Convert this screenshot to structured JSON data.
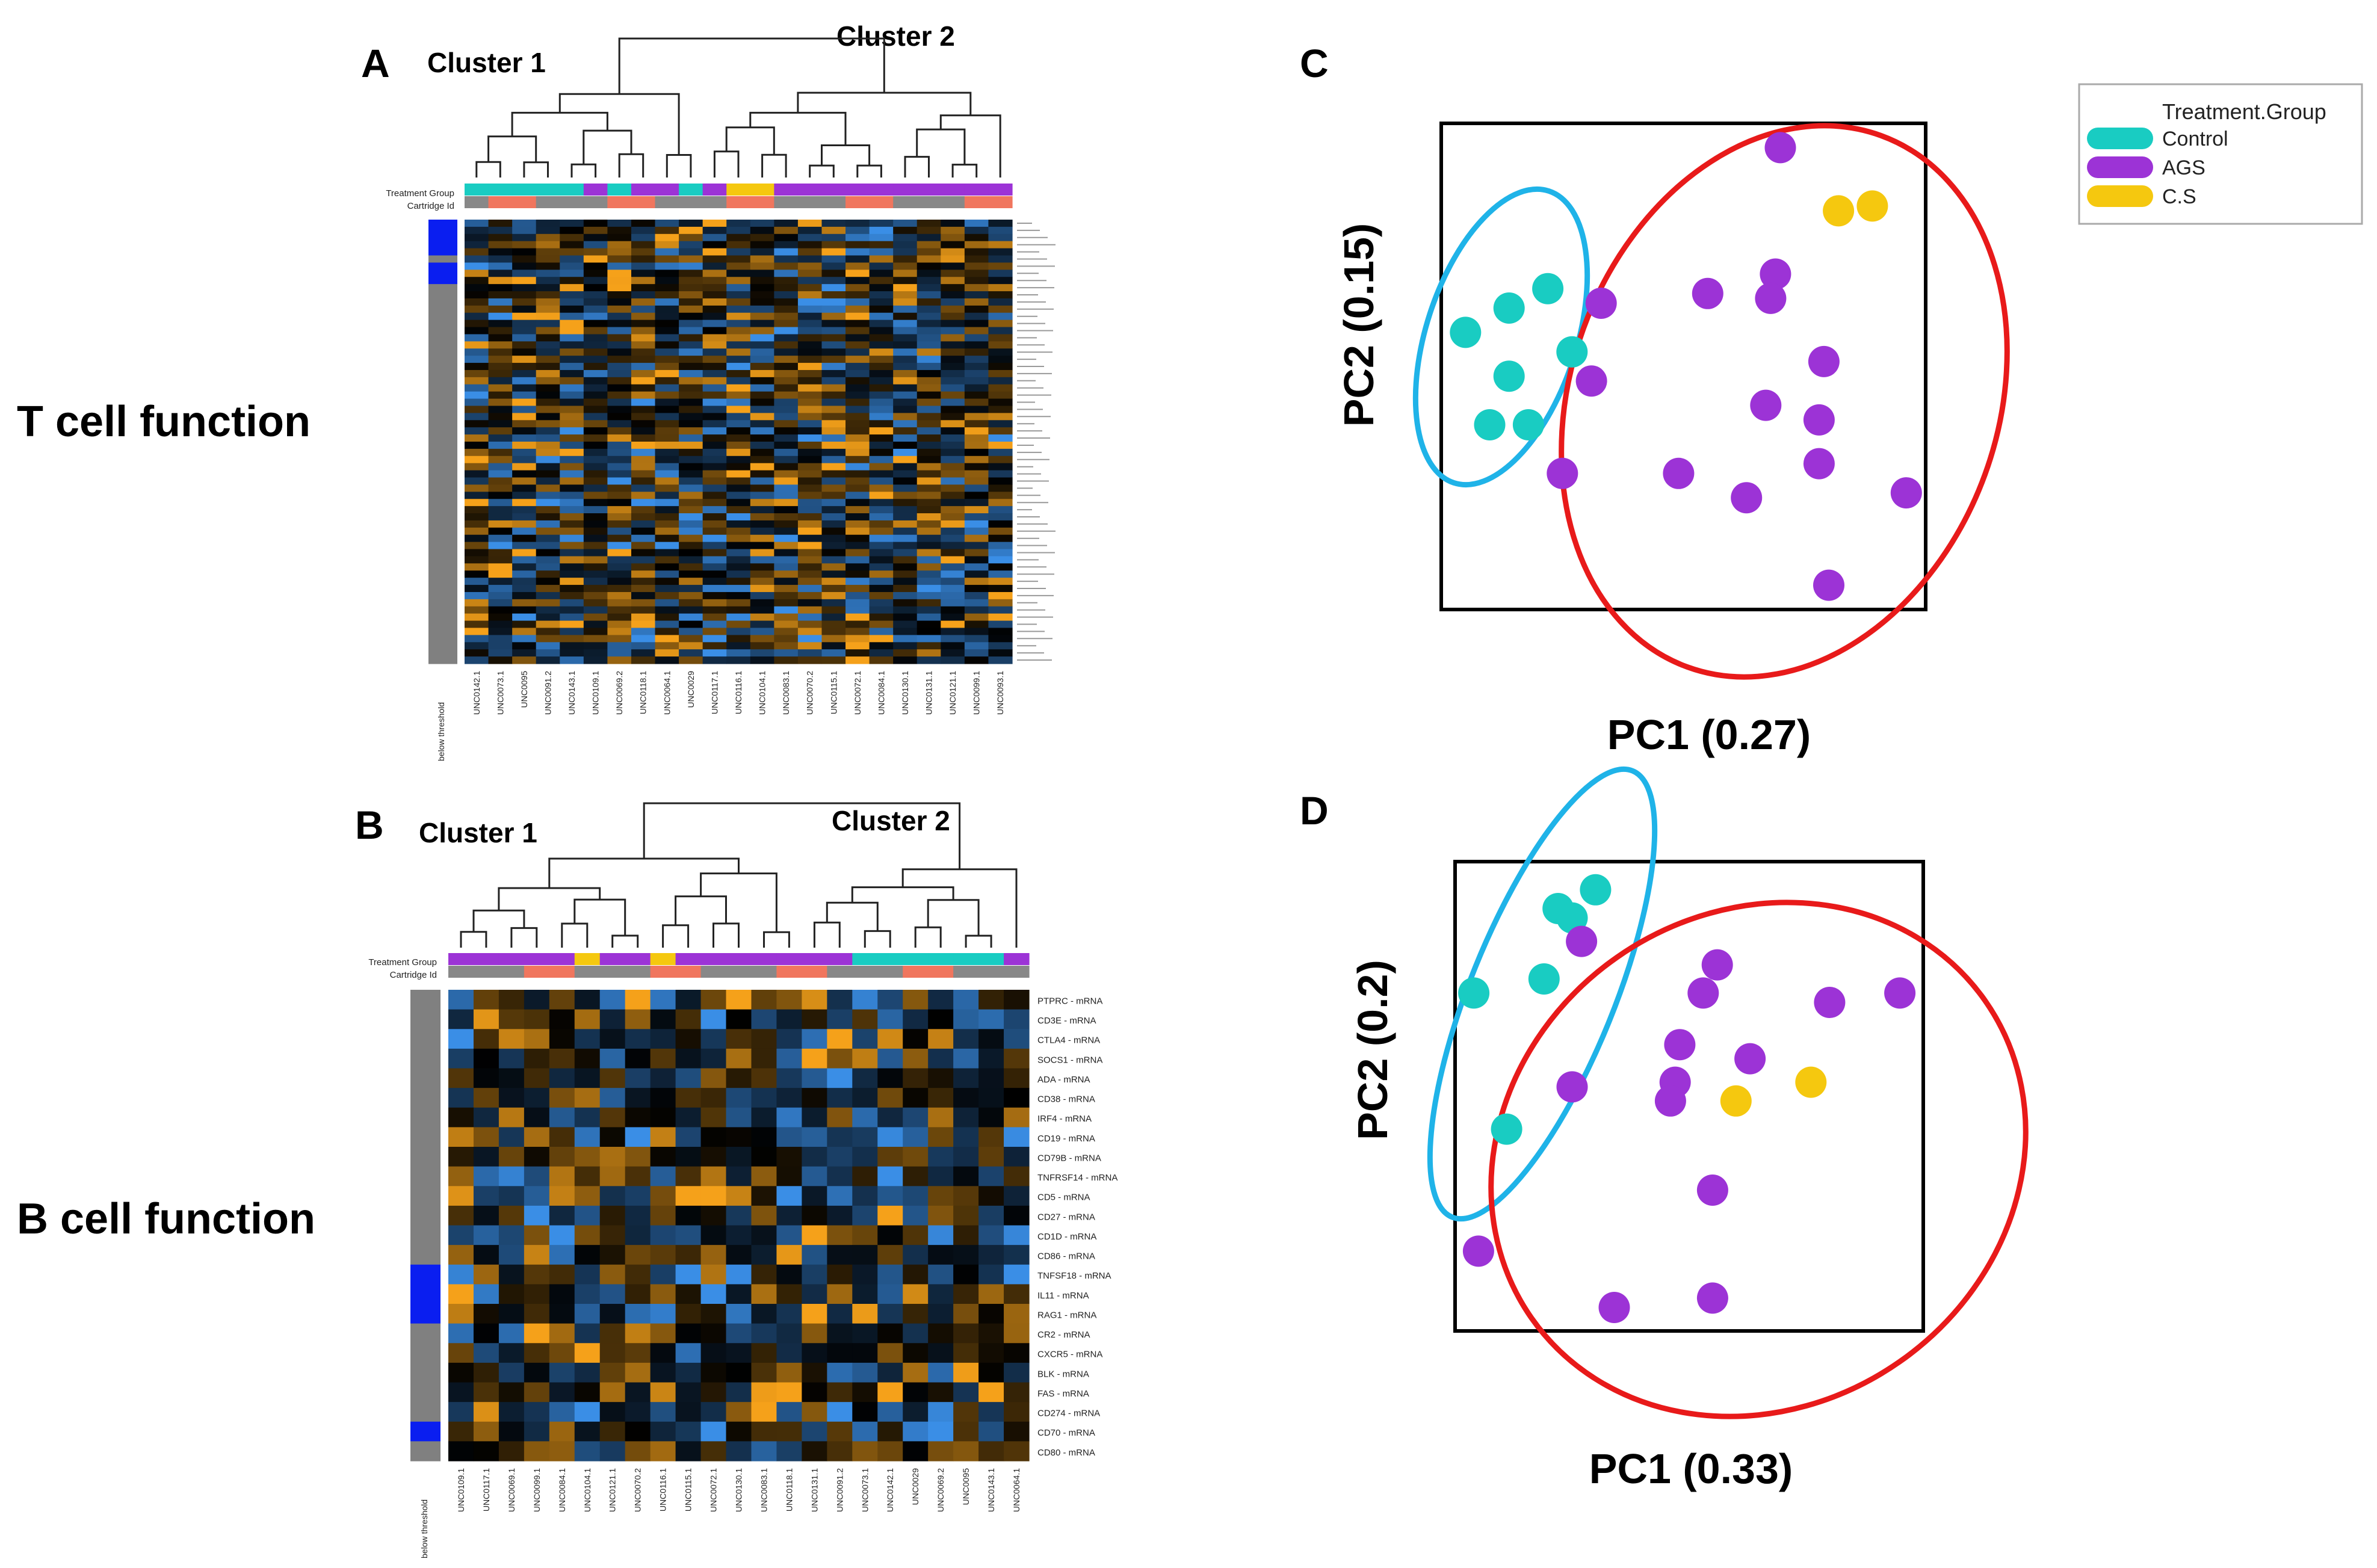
{
  "chart_data": [
    {
      "panel": "A",
      "type": "heatmap",
      "row_label": "T cell function",
      "cluster_labels": [
        "Cluster 1",
        "Cluster 2"
      ],
      "annotation_labels": [
        "Treatment Group",
        "Cartridge Id"
      ],
      "threshold_label": "below threshold",
      "samples": [
        "UNC0142.1",
        "UNC0073.1",
        "UNC0095",
        "UNC0091.2",
        "UNC0143.1",
        "UNC0109.1",
        "UNC0069.2",
        "UNC0118.1",
        "UNC0064.1",
        "UNC0029",
        "UNC0117.1",
        "UNC0116.1",
        "UNC0104.1",
        "UNC0083.1",
        "UNC0070.2",
        "UNC0115.1",
        "UNC0072.1",
        "UNC0084.1",
        "UNC0130.1",
        "UNC0131.1",
        "UNC0121.1",
        "UNC0099.1",
        "UNC0093.1"
      ],
      "treatment_group": [
        "Control",
        "Control",
        "Control",
        "Control",
        "Control",
        "AGS",
        "Control",
        "AGS",
        "AGS",
        "Control",
        "AGS",
        "C.S",
        "C.S",
        "AGS",
        "AGS",
        "AGS",
        "AGS",
        "AGS",
        "AGS",
        "AGS",
        "AGS",
        "AGS",
        "AGS"
      ],
      "gene_count": 62,
      "color_scale": {
        "low": "#3a8ee6",
        "mid": "#000000",
        "high": "#f5a11a"
      }
    },
    {
      "panel": "B",
      "type": "heatmap",
      "row_label": "B cell function",
      "cluster_labels": [
        "Cluster 1",
        "Cluster 2"
      ],
      "annotation_labels": [
        "Treatment Group",
        "Cartridge Id"
      ],
      "threshold_label": "below threshold",
      "samples": [
        "UNC0109.1",
        "UNC0117.1",
        "UNC0069.1",
        "UNC0099.1",
        "UNC0084.1",
        "UNC0104.1",
        "UNC0121.1",
        "UNC0070.2",
        "UNC0116.1",
        "UNC0115.1",
        "UNC0072.1",
        "UNC0130.1",
        "UNC0083.1",
        "UNC0118.1",
        "UNC0131.1",
        "UNC0091.2",
        "UNC0073.1",
        "UNC0142.1",
        "UNC0029",
        "UNC0069.2",
        "UNC0095",
        "UNC0143.1",
        "UNC0064.1"
      ],
      "treatment_group": [
        "AGS",
        "AGS",
        "AGS",
        "AGS",
        "AGS",
        "C.S",
        "AGS",
        "AGS",
        "C.S",
        "AGS",
        "AGS",
        "AGS",
        "AGS",
        "AGS",
        "AGS",
        "AGS",
        "Control",
        "Control",
        "Control",
        "Control",
        "Control",
        "Control",
        "AGS"
      ],
      "genes": [
        "PTPRC - mRNA",
        "CD3E - mRNA",
        "CTLA4 - mRNA",
        "SOCS1 - mRNA",
        "ADA - mRNA",
        "CD38 - mRNA",
        "IRF4 - mRNA",
        "CD19 - mRNA",
        "CD79B - mRNA",
        "TNFRSF14 - mRNA",
        "CD5 - mRNA",
        "CD27 - mRNA",
        "CD1D - mRNA",
        "CD86 - mRNA",
        "TNFSF18 - mRNA",
        "IL11 - mRNA",
        "RAG1 - mRNA",
        "CR2 - mRNA",
        "CXCR5 - mRNA",
        "BLK - mRNA",
        "FAS - mRNA",
        "CD274 - mRNA",
        "CD70 - mRNA",
        "CD80 - mRNA"
      ],
      "color_scale": {
        "low": "#3a8ee6",
        "mid": "#000000",
        "high": "#f5a11a"
      }
    },
    {
      "panel": "C",
      "type": "scatter",
      "xlabel": "PC1 (0.27)",
      "ylabel": "PC2 (0.15)",
      "xlim": [
        0,
        1
      ],
      "ylim": [
        0,
        1
      ],
      "legend": {
        "title": "Treatment.Group",
        "items": [
          "Control",
          "AGS",
          "C.S"
        ],
        "placement": "top-right"
      },
      "colors": {
        "Control": "#19ccc2",
        "AGS": "#9c33d6",
        "C.S": "#f5c80f"
      },
      "series": [
        {
          "name": "Control",
          "points": [
            [
              0.05,
              0.57
            ],
            [
              0.14,
              0.62
            ],
            [
              0.22,
              0.66
            ],
            [
              0.27,
              0.53
            ],
            [
              0.14,
              0.48
            ],
            [
              0.1,
              0.38
            ],
            [
              0.18,
              0.38
            ]
          ]
        },
        {
          "name": "AGS",
          "points": [
            [
              0.7,
              0.95
            ],
            [
              0.33,
              0.63
            ],
            [
              0.55,
              0.65
            ],
            [
              0.69,
              0.69
            ],
            [
              0.68,
              0.64
            ],
            [
              0.31,
              0.47
            ],
            [
              0.79,
              0.51
            ],
            [
              0.67,
              0.42
            ],
            [
              0.78,
              0.39
            ],
            [
              0.78,
              0.3
            ],
            [
              0.25,
              0.28
            ],
            [
              0.49,
              0.28
            ],
            [
              0.63,
              0.23
            ],
            [
              0.96,
              0.24
            ],
            [
              0.8,
              0.05
            ]
          ]
        },
        {
          "name": "C.S",
          "points": [
            [
              0.82,
              0.82
            ],
            [
              0.89,
              0.83
            ]
          ]
        }
      ]
    },
    {
      "panel": "D",
      "type": "scatter",
      "xlabel": "PC1 (0.33)",
      "ylabel": "PC2 (0.2)",
      "xlim": [
        0,
        1
      ],
      "ylim": [
        0,
        1
      ],
      "colors": {
        "Control": "#19ccc2",
        "AGS": "#9c33d6",
        "C.S": "#f5c80f"
      },
      "series": [
        {
          "name": "Control",
          "points": [
            [
              0.3,
              0.94
            ],
            [
              0.22,
              0.9
            ],
            [
              0.25,
              0.88
            ],
            [
              0.19,
              0.75
            ],
            [
              0.04,
              0.72
            ],
            [
              0.11,
              0.43
            ]
          ]
        },
        {
          "name": "AGS",
          "points": [
            [
              0.27,
              0.83
            ],
            [
              0.56,
              0.78
            ],
            [
              0.53,
              0.72
            ],
            [
              0.8,
              0.7
            ],
            [
              0.95,
              0.72
            ],
            [
              0.48,
              0.61
            ],
            [
              0.63,
              0.58
            ],
            [
              0.47,
              0.53
            ],
            [
              0.25,
              0.52
            ],
            [
              0.46,
              0.49
            ],
            [
              0.55,
              0.3
            ],
            [
              0.05,
              0.17
            ],
            [
              0.55,
              0.07
            ],
            [
              0.34,
              0.05
            ]
          ]
        },
        {
          "name": "C.S",
          "points": [
            [
              0.6,
              0.49
            ],
            [
              0.76,
              0.53
            ]
          ]
        }
      ]
    }
  ],
  "panel_letters": {
    "a": "A",
    "b": "B",
    "c": "C",
    "d": "D"
  }
}
